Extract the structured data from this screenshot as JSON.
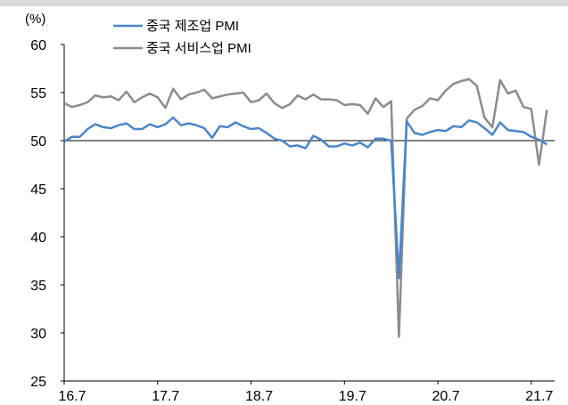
{
  "chart_data": {
    "type": "line",
    "title": "",
    "y_unit": "(%)",
    "xlabel": "",
    "ylabel": "",
    "ylim": [
      25,
      60
    ],
    "yticks": [
      25,
      30,
      35,
      40,
      45,
      50,
      55,
      60
    ],
    "xlim": [
      0,
      63
    ],
    "x_tick_labels": [
      {
        "label": "16.7",
        "index": 0
      },
      {
        "label": "17.7",
        "index": 12
      },
      {
        "label": "18.7",
        "index": 24
      },
      {
        "label": "19.7",
        "index": 36
      },
      {
        "label": "20.7",
        "index": 48
      },
      {
        "label": "21.7",
        "index": 60
      }
    ],
    "reference_line": 50,
    "grid": false,
    "legend_position": "top-left",
    "series": [
      {
        "name": "중국 제조업 PMI",
        "color": "#4a86c8",
        "values": [
          49.9,
          50.4,
          50.4,
          51.2,
          51.7,
          51.4,
          51.3,
          51.6,
          51.8,
          51.2,
          51.2,
          51.7,
          51.4,
          51.7,
          52.4,
          51.6,
          51.8,
          51.6,
          51.3,
          50.3,
          51.5,
          51.4,
          51.9,
          51.5,
          51.2,
          51.3,
          50.8,
          50.2,
          50.0,
          49.4,
          49.5,
          49.2,
          50.5,
          50.1,
          49.4,
          49.4,
          49.7,
          49.5,
          49.8,
          49.3,
          50.2,
          50.2,
          50.0,
          35.7,
          52.0,
          50.8,
          50.6,
          50.9,
          51.1,
          51.0,
          51.5,
          51.4,
          52.1,
          51.9,
          51.3,
          50.6,
          51.9,
          51.1,
          51.0,
          50.9,
          50.4,
          50.1,
          49.6
        ]
      },
      {
        "name": "중국 서비스업 PMI",
        "color": "#8c8c8c",
        "values": [
          53.9,
          53.5,
          53.7,
          54.0,
          54.7,
          54.5,
          54.6,
          54.2,
          55.1,
          54.0,
          54.5,
          54.9,
          54.5,
          53.4,
          55.4,
          54.3,
          54.8,
          55.0,
          55.3,
          54.4,
          54.6,
          54.8,
          54.9,
          55.0,
          54.0,
          54.2,
          54.9,
          53.9,
          53.4,
          53.8,
          54.7,
          54.3,
          54.8,
          54.3,
          54.3,
          54.2,
          53.7,
          53.8,
          53.7,
          52.8,
          54.4,
          53.5,
          54.1,
          29.6,
          52.3,
          53.2,
          53.6,
          54.4,
          54.2,
          55.2,
          55.9,
          56.2,
          56.4,
          55.7,
          52.4,
          51.4,
          56.3,
          54.9,
          55.2,
          53.5,
          53.3,
          47.5,
          53.2
        ]
      }
    ]
  }
}
